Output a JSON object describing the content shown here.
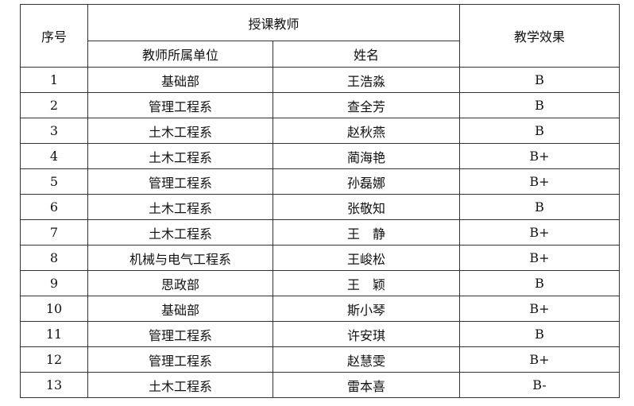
{
  "headers": {
    "no": "序号",
    "teacher": "授课教师",
    "unit": "教师所属单位",
    "name": "姓名",
    "effect": "教学效果"
  },
  "rows": [
    {
      "no": "1",
      "unit": "基础部",
      "name": "王浩淼",
      "effect": "B"
    },
    {
      "no": "2",
      "unit": "管理工程系",
      "name": "查全芳",
      "effect": "B"
    },
    {
      "no": "3",
      "unit": "土木工程系",
      "name": "赵秋燕",
      "effect": "B"
    },
    {
      "no": "4",
      "unit": "土木工程系",
      "name": "蔺海艳",
      "effect": "B+"
    },
    {
      "no": "5",
      "unit": "管理工程系",
      "name": "孙磊娜",
      "effect": "B+"
    },
    {
      "no": "6",
      "unit": "土木工程系",
      "name": "张敬知",
      "effect": "B"
    },
    {
      "no": "7",
      "unit": "土木工程系",
      "name": "王　静",
      "effect": "B+"
    },
    {
      "no": "8",
      "unit": "机械与电气工程系",
      "name": "王峻松",
      "effect": "B+"
    },
    {
      "no": "9",
      "unit": "思政部",
      "name": "王　颖",
      "effect": "B"
    },
    {
      "no": "10",
      "unit": "基础部",
      "name": "斯小琴",
      "effect": "B+"
    },
    {
      "no": "11",
      "unit": "管理工程系",
      "name": "许安琪",
      "effect": "B"
    },
    {
      "no": "12",
      "unit": "管理工程系",
      "name": "赵慧雯",
      "effect": "B+"
    },
    {
      "no": "13",
      "unit": "土木工程系",
      "name": "雷本喜",
      "effect": "B-"
    }
  ]
}
